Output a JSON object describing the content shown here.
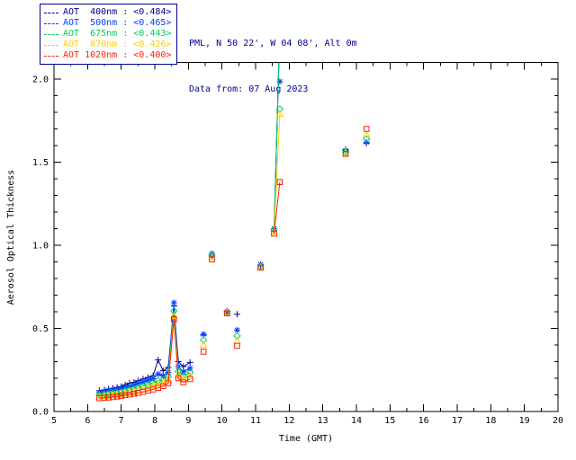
{
  "header": {
    "site_line": "PML, N 50 22', W 04 08', Alt 0m",
    "date_line": "Data from: 07 Aug 2023"
  },
  "legend": {
    "position": "top-left"
  },
  "chart_data": {
    "type": "line",
    "title": "",
    "xlabel": "Time (GMT)",
    "ylabel": "Aerosol Optical Thickness",
    "xlim": [
      5,
      20
    ],
    "ylim": [
      0,
      2.1
    ],
    "x_ticks": [
      5,
      6,
      7,
      8,
      9,
      10,
      11,
      12,
      13,
      14,
      15,
      16,
      17,
      18,
      19,
      20
    ],
    "y_ticks": [
      0.0,
      0.5,
      1.0,
      1.5,
      2.0
    ],
    "grid": false,
    "axis_color": "#000000",
    "series": [
      {
        "name": "AOT 400nm",
        "avg": 0.484,
        "legend": "AOT  400nm : <0.484>",
        "color": "#000090",
        "marker": "plus",
        "segments": [
          {
            "x": [
              6.35,
              6.5,
              6.62,
              6.75,
              6.88,
              7.0,
              7.12,
              7.25,
              7.38,
              7.5,
              7.65,
              7.8,
              7.95,
              8.1,
              8.25,
              8.4,
              8.57,
              8.7,
              8.85,
              9.05
            ],
            "y": [
              0.125,
              0.13,
              0.135,
              0.14,
              0.145,
              0.15,
              0.16,
              0.17,
              0.175,
              0.185,
              0.195,
              0.205,
              0.215,
              0.31,
              0.245,
              0.265,
              0.635,
              0.3,
              0.27,
              0.295
            ]
          },
          {
            "x": [
              11.55,
              11.72
            ],
            "y": [
              1.085,
              2.3
            ]
          }
        ],
        "isolated_points": {
          "x": [
            9.45,
            9.7,
            10.15,
            10.45,
            11.15,
            13.68,
            14.3
          ],
          "y": [
            0.46,
            0.935,
            0.605,
            0.585,
            0.875,
            1.575,
            1.615
          ]
        }
      },
      {
        "name": "AOT 500nm",
        "avg": 0.465,
        "legend": "AOT  500nm : <0.465>",
        "color": "#0040ff",
        "marker": "asterisk",
        "segments": [
          {
            "x": [
              6.35,
              6.5,
              6.62,
              6.75,
              6.88,
              7.0,
              7.12,
              7.25,
              7.38,
              7.5,
              7.65,
              7.8,
              7.95,
              8.1,
              8.25,
              8.4,
              8.57,
              8.7,
              8.85,
              9.05
            ],
            "y": [
              0.115,
              0.12,
              0.125,
              0.128,
              0.132,
              0.138,
              0.145,
              0.152,
              0.158,
              0.168,
              0.178,
              0.188,
              0.198,
              0.225,
              0.215,
              0.235,
              0.655,
              0.27,
              0.24,
              0.26
            ]
          },
          {
            "x": [
              11.55,
              11.72
            ],
            "y": [
              1.1,
              2.3
            ]
          }
        ],
        "isolated_points": {
          "x": [
            9.45,
            9.7,
            10.15,
            10.45,
            11.15,
            11.72,
            13.68,
            14.3
          ],
          "y": [
            0.465,
            0.95,
            0.6,
            0.49,
            0.885,
            1.985,
            1.57,
            1.62
          ]
        }
      },
      {
        "name": "AOT 675nm",
        "avg": 0.443,
        "legend": "AOT  675nm : <0.443>",
        "color": "#00cc60",
        "marker": "diamond",
        "segments": [
          {
            "x": [
              6.35,
              6.5,
              6.62,
              6.75,
              6.88,
              7.0,
              7.12,
              7.25,
              7.38,
              7.5,
              7.65,
              7.8,
              7.95,
              8.1,
              8.25,
              8.4,
              8.57,
              8.7,
              8.85,
              9.05
            ],
            "y": [
              0.1,
              0.103,
              0.107,
              0.11,
              0.113,
              0.118,
              0.124,
              0.13,
              0.136,
              0.143,
              0.152,
              0.162,
              0.172,
              0.185,
              0.19,
              0.21,
              0.605,
              0.24,
              0.215,
              0.235
            ]
          },
          {
            "x": [
              11.55,
              11.72
            ],
            "y": [
              1.095,
              2.3
            ]
          }
        ],
        "isolated_points": {
          "x": [
            9.45,
            9.7,
            10.15,
            10.45,
            11.15,
            11.72,
            13.68,
            14.3
          ],
          "y": [
            0.43,
            0.94,
            0.598,
            0.455,
            0.872,
            1.82,
            1.56,
            1.64
          ]
        }
      },
      {
        "name": "AOT 870nm",
        "avg": 0.426,
        "legend": "AOT  870nm : <0.426>",
        "color": "#ffcc00",
        "marker": "triangle",
        "segments": [
          {
            "x": [
              6.35,
              6.5,
              6.62,
              6.75,
              6.88,
              7.0,
              7.12,
              7.25,
              7.38,
              7.5,
              7.65,
              7.8,
              7.95,
              8.1,
              8.25,
              8.4,
              8.57,
              8.7,
              8.85,
              9.05
            ],
            "y": [
              0.09,
              0.092,
              0.095,
              0.098,
              0.102,
              0.106,
              0.111,
              0.116,
              0.122,
              0.128,
              0.136,
              0.145,
              0.155,
              0.165,
              0.175,
              0.19,
              0.575,
              0.22,
              0.195,
              0.215
            ]
          },
          {
            "x": [
              11.55,
              11.72
            ],
            "y": [
              1.08,
              1.79
            ]
          }
        ],
        "isolated_points": {
          "x": [
            9.45,
            9.7,
            10.15,
            10.45,
            11.15,
            13.68,
            14.3
          ],
          "y": [
            0.4,
            0.928,
            0.595,
            0.425,
            0.868,
            1.555,
            1.665
          ]
        }
      },
      {
        "name": "AOT 1020nm",
        "avg": 0.4,
        "legend": "AOT 1020nm : <0.400>",
        "color": "#ff2000",
        "marker": "square",
        "segments": [
          {
            "x": [
              6.35,
              6.5,
              6.62,
              6.75,
              6.88,
              7.0,
              7.12,
              7.25,
              7.38,
              7.5,
              7.65,
              7.8,
              7.95,
              8.1,
              8.25,
              8.4,
              8.57,
              8.7,
              8.85,
              9.05
            ],
            "y": [
              0.08,
              0.082,
              0.084,
              0.087,
              0.09,
              0.094,
              0.098,
              0.102,
              0.107,
              0.112,
              0.118,
              0.125,
              0.133,
              0.142,
              0.152,
              0.17,
              0.555,
              0.2,
              0.175,
              0.195
            ]
          },
          {
            "x": [
              11.55,
              11.72
            ],
            "y": [
              1.07,
              1.38
            ]
          }
        ],
        "isolated_points": {
          "x": [
            9.45,
            9.7,
            10.15,
            10.45,
            11.15,
            13.68,
            14.3
          ],
          "y": [
            0.36,
            0.915,
            0.59,
            0.395,
            0.865,
            1.55,
            1.7
          ]
        }
      }
    ]
  }
}
